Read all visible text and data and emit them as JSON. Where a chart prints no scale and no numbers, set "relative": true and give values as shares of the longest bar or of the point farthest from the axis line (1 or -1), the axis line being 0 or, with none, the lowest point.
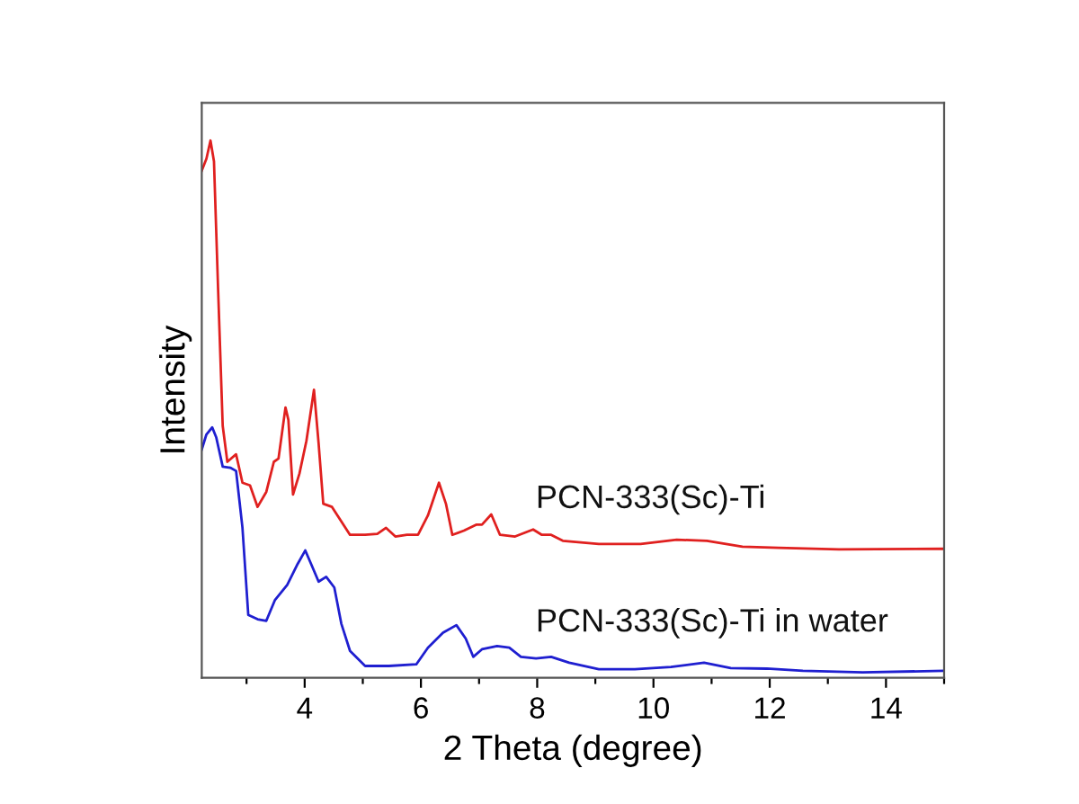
{
  "chart_data": {
    "type": "line",
    "relative": true,
    "xlabel": "2 Theta (degree)",
    "ylabel": "Intensity",
    "xlim": [
      2.23,
      15
    ],
    "xticks": [
      {
        "value": 3,
        "label": null
      },
      4,
      {
        "value": 5,
        "label": null
      },
      6,
      {
        "value": 7,
        "label": null
      },
      8,
      {
        "value": 9,
        "label": null
      },
      10,
      {
        "value": 11,
        "label": null
      },
      12,
      {
        "value": 13,
        "label": null
      },
      14,
      {
        "value": 15,
        "label": null
      }
    ],
    "grid": false,
    "legend": false,
    "marker": "none",
    "line_style": "solid",
    "series": [
      {
        "name": "PCN-333(Sc)-Ti",
        "color": "#e0201f",
        "x": [
          2.23,
          2.31,
          2.38,
          2.44,
          2.51,
          2.59,
          2.67,
          2.82,
          2.93,
          3.06,
          3.19,
          3.34,
          3.47,
          3.55,
          3.67,
          3.72,
          3.8,
          3.91,
          4.03,
          4.16,
          4.24,
          4.32,
          4.47,
          4.63,
          4.78,
          5.04,
          5.25,
          5.4,
          5.56,
          5.76,
          5.95,
          6.12,
          6.31,
          6.43,
          6.54,
          6.74,
          6.95,
          7.05,
          7.21,
          7.36,
          7.62,
          7.93,
          8.08,
          8.24,
          8.44,
          9.06,
          9.78,
          10.4,
          10.92,
          11.53,
          12.15,
          13.19,
          14.98
        ],
        "values": [
          0.944,
          0.966,
          1.0,
          0.961,
          0.726,
          0.469,
          0.402,
          0.416,
          0.363,
          0.358,
          0.318,
          0.346,
          0.402,
          0.408,
          0.503,
          0.48,
          0.341,
          0.38,
          0.441,
          0.536,
          0.436,
          0.324,
          0.318,
          0.291,
          0.266,
          0.266,
          0.268,
          0.279,
          0.263,
          0.266,
          0.266,
          0.302,
          0.363,
          0.324,
          0.266,
          0.274,
          0.285,
          0.285,
          0.304,
          0.266,
          0.263,
          0.276,
          0.266,
          0.266,
          0.255,
          0.249,
          0.249,
          0.257,
          0.255,
          0.244,
          0.242,
          0.239,
          0.24
        ]
      },
      {
        "name": "PCN-333(Sc)-Ti in water",
        "color": "#1f1fd0",
        "x": [
          2.23,
          2.31,
          2.41,
          2.48,
          2.59,
          2.72,
          2.82,
          2.93,
          3.03,
          3.19,
          3.34,
          3.49,
          3.7,
          3.88,
          4.01,
          4.11,
          4.24,
          4.37,
          4.51,
          4.63,
          4.78,
          5.04,
          5.45,
          5.92,
          6.12,
          6.38,
          6.61,
          6.77,
          6.9,
          7.05,
          7.31,
          7.52,
          7.72,
          7.98,
          8.24,
          8.55,
          9.06,
          9.68,
          10.3,
          10.87,
          11.33,
          11.95,
          12.57,
          13.6,
          14.98
        ],
        "values": [
          0.425,
          0.453,
          0.466,
          0.447,
          0.393,
          0.391,
          0.385,
          0.279,
          0.117,
          0.109,
          0.106,
          0.145,
          0.173,
          0.212,
          0.237,
          0.212,
          0.179,
          0.188,
          0.168,
          0.101,
          0.05,
          0.022,
          0.022,
          0.025,
          0.056,
          0.084,
          0.098,
          0.073,
          0.039,
          0.053,
          0.059,
          0.056,
          0.039,
          0.036,
          0.039,
          0.028,
          0.016,
          0.016,
          0.02,
          0.028,
          0.018,
          0.017,
          0.013,
          0.01,
          0.013
        ]
      }
    ]
  }
}
